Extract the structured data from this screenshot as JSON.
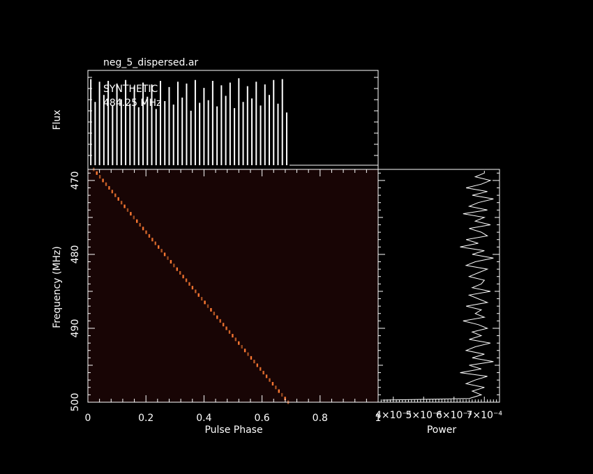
{
  "chart_data": [
    {
      "type": "line",
      "panel": "profile",
      "title": "neg_5_dispersed.ar",
      "ylabel": "Flux",
      "annotations": [
        "SYNTHETIC",
        "484.25 MHz"
      ],
      "xlim": [
        0,
        1
      ],
      "series": [
        {
          "spikes_x": [
            0.01,
            0.025,
            0.04,
            0.055,
            0.07,
            0.085,
            0.1,
            0.115,
            0.13,
            0.145,
            0.16,
            0.175,
            0.19,
            0.205,
            0.22,
            0.235,
            0.25,
            0.265,
            0.28,
            0.295,
            0.31,
            0.325,
            0.34,
            0.355,
            0.37,
            0.385,
            0.4,
            0.415,
            0.43,
            0.445,
            0.46,
            0.475,
            0.49,
            0.505,
            0.52,
            0.535,
            0.55,
            0.565,
            0.58,
            0.595,
            0.61,
            0.625,
            0.64,
            0.655,
            0.67,
            0.685
          ],
          "spikes_height": [
            0.98,
            0.72,
            0.95,
            0.8,
            0.96,
            0.68,
            0.93,
            0.75,
            0.97,
            0.7,
            0.9,
            0.66,
            0.94,
            0.78,
            0.92,
            0.64,
            0.96,
            0.73,
            0.89,
            0.69,
            0.95,
            0.77,
            0.93,
            0.62,
            0.97,
            0.71,
            0.88,
            0.74,
            0.96,
            0.67,
            0.91,
            0.79,
            0.94,
            0.65,
            0.99,
            0.72,
            0.9,
            0.76,
            0.95,
            0.68,
            0.92,
            0.8,
            0.97,
            0.7,
            0.98,
            0.6
          ],
          "baseline": 0.02
        }
      ]
    },
    {
      "type": "heatmap",
      "panel": "waterfall",
      "xlabel": "Pulse Phase",
      "ylabel": "Frequency (MHz)",
      "xlim": [
        0,
        1
      ],
      "ylim": [
        500,
        468.5
      ],
      "xticks": [
        "0",
        "0.2",
        "0.4",
        "0.6",
        "0.8",
        "1"
      ],
      "yticks": [
        "470",
        "480",
        "490",
        "500"
      ],
      "track": {
        "freq_top": 468.5,
        "freq_bottom": 500,
        "phase_top": 0.02,
        "phase_bottom": 0.69
      },
      "colors": {
        "track": "#ff7a33",
        "background": "#180505"
      }
    },
    {
      "type": "line",
      "panel": "power",
      "xlabel": "Power",
      "xticks": [
        "4×10⁻⁴",
        "5×10⁻⁴",
        "6×10⁻⁴",
        "7×10⁻⁴"
      ],
      "freq": [
        469,
        469.5,
        470,
        470.5,
        471,
        471.5,
        472,
        472.5,
        473,
        473.5,
        474,
        474.5,
        475,
        475.5,
        476,
        476.5,
        477,
        477.5,
        478,
        478.5,
        479,
        479.5,
        480,
        480.5,
        481,
        481.5,
        482,
        482.5,
        483,
        483.5,
        484,
        484.5,
        485,
        485.5,
        486,
        486.5,
        487,
        487.5,
        488,
        488.5,
        489,
        489.5,
        490,
        490.5,
        491,
        491.5,
        492,
        492.5,
        493,
        493.5,
        494,
        494.5,
        495,
        495.5,
        496,
        496.5,
        497,
        497.5,
        498,
        498.5,
        499,
        499.5
      ],
      "power": [
        0.0007,
        0.00067,
        0.00072,
        0.00069,
        0.00064,
        0.00071,
        0.00066,
        0.00073,
        0.00068,
        0.00065,
        0.00071,
        0.00063,
        0.0007,
        0.00067,
        0.00072,
        0.00065,
        0.00069,
        0.00071,
        0.00064,
        0.00068,
        0.00062,
        0.0007,
        0.00066,
        0.00073,
        0.00067,
        0.00064,
        0.00071,
        0.00068,
        0.00065,
        0.0007,
        0.00069,
        0.00066,
        0.00072,
        0.00065,
        0.00068,
        0.00071,
        0.00064,
        0.00069,
        0.00067,
        0.0007,
        0.00063,
        0.00068,
        0.00071,
        0.00066,
        0.00069,
        0.00065,
        0.00072,
        0.00067,
        0.00064,
        0.0007,
        0.00066,
        0.00073,
        0.00065,
        0.00069,
        0.00062,
        0.00071,
        0.00067,
        0.00064,
        0.0007,
        0.00066,
        0.00069,
        0.00065
      ],
      "xlim": [
        0.00035,
        0.00075
      ]
    }
  ]
}
